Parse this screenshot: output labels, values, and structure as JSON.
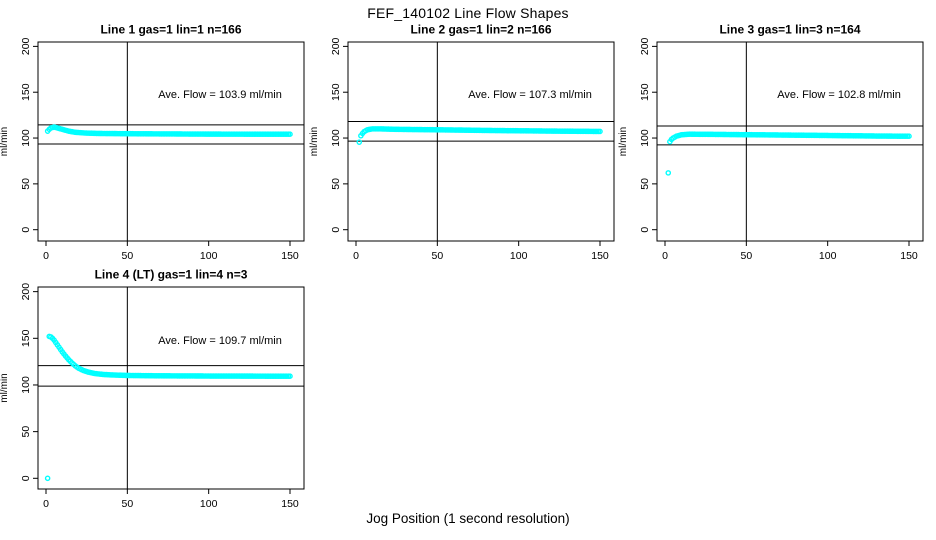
{
  "page": {
    "title": "FEF_140102  Line Flow Shapes",
    "xlabel": "Jog Position (1 second resolution)",
    "ylabel": "ml/min",
    "point_color": "#00FFFF",
    "line_color": "#000000",
    "background_color": "#ffffff"
  },
  "chart_data": [
    {
      "type": "scatter",
      "title": "Line 1 gas=1 lin=1 n=166",
      "n": 166,
      "ave_flow": 103.9,
      "annotation": "Ave. Flow =  103.9  ml/min",
      "xlabel": "Jog Position (1 second resolution)",
      "ylabel": "ml/min",
      "xticks": [
        0,
        50,
        100,
        150
      ],
      "yticks": [
        0,
        50,
        100,
        150,
        200
      ],
      "xlim": [
        -5,
        158
      ],
      "ylim": [
        -13,
        205
      ],
      "vline_x": 50,
      "hlines": [
        114.3,
        93.5
      ],
      "outliers": [],
      "curve": [
        [
          1,
          107.5
        ],
        [
          2,
          109.5
        ],
        [
          3,
          111
        ],
        [
          5,
          112
        ],
        [
          7,
          111
        ],
        [
          10,
          109.5
        ],
        [
          14,
          107.5
        ],
        [
          18,
          106.3
        ],
        [
          24,
          105.5
        ],
        [
          32,
          105
        ],
        [
          60,
          104.6
        ],
        [
          100,
          104.3
        ],
        [
          150,
          104.2
        ]
      ]
    },
    {
      "type": "scatter",
      "title": "Line 2 gas=1 lin=2 n=166",
      "n": 166,
      "ave_flow": 107.3,
      "annotation": "Ave. Flow =  107.3  ml/min",
      "xlabel": "Jog Position (1 second resolution)",
      "ylabel": "ml/min",
      "xticks": [
        0,
        50,
        100,
        150
      ],
      "yticks": [
        0,
        50,
        100,
        150,
        200
      ],
      "xlim": [
        -5,
        158
      ],
      "ylim": [
        -13,
        205
      ],
      "vline_x": 50,
      "hlines": [
        118.0,
        96.6
      ],
      "outliers": [
        [
          2,
          95.5
        ]
      ],
      "curve": [
        [
          3,
          102.5
        ],
        [
          4,
          105
        ],
        [
          5,
          107
        ],
        [
          7,
          109
        ],
        [
          10,
          110
        ],
        [
          15,
          110
        ],
        [
          25,
          109.5
        ],
        [
          50,
          109
        ],
        [
          80,
          108.3
        ],
        [
          120,
          107.6
        ],
        [
          150,
          107.2
        ]
      ]
    },
    {
      "type": "scatter",
      "title": "Line 3 gas=1 lin=3 n=164",
      "n": 164,
      "ave_flow": 102.8,
      "annotation": "Ave. Flow =  102.8  ml/min",
      "xlabel": "Jog Position (1 second resolution)",
      "ylabel": "ml/min",
      "xticks": [
        0,
        50,
        100,
        150
      ],
      "yticks": [
        0,
        50,
        100,
        150,
        200
      ],
      "xlim": [
        -5,
        158
      ],
      "ylim": [
        -13,
        205
      ],
      "vline_x": 50,
      "hlines": [
        113.1,
        92.5
      ],
      "outliers": [
        [
          2,
          62
        ],
        [
          3,
          96
        ]
      ],
      "curve": [
        [
          4,
          98.5
        ],
        [
          5,
          100
        ],
        [
          7,
          102
        ],
        [
          10,
          103.5
        ],
        [
          15,
          104.2
        ],
        [
          30,
          104
        ],
        [
          60,
          103.5
        ],
        [
          100,
          102.8
        ],
        [
          130,
          102.2
        ],
        [
          150,
          102
        ]
      ]
    },
    {
      "type": "scatter",
      "title": "Line 4 (LT) gas=1 lin=4 n=3",
      "n": 3,
      "ave_flow": 109.7,
      "annotation": "Ave. Flow =  109.7  ml/min",
      "xlabel": "Jog Position (1 second resolution)",
      "ylabel": "ml/min",
      "xticks": [
        0,
        50,
        100,
        150
      ],
      "yticks": [
        0,
        50,
        100,
        150,
        200
      ],
      "xlim": [
        -5,
        158
      ],
      "ylim": [
        -13,
        205
      ],
      "vline_x": 50,
      "hlines": [
        120.7,
        98.7
      ],
      "outliers": [
        [
          1,
          0
        ]
      ],
      "curve": [
        [
          2,
          152
        ],
        [
          3,
          151.5
        ],
        [
          4,
          150
        ],
        [
          5,
          148
        ],
        [
          6,
          145.5
        ],
        [
          7,
          143
        ],
        [
          8,
          140.5
        ],
        [
          9,
          138
        ],
        [
          10,
          135.5
        ],
        [
          12,
          131
        ],
        [
          14,
          127
        ],
        [
          16,
          123.5
        ],
        [
          18,
          120.5
        ],
        [
          20,
          118
        ],
        [
          23,
          115.5
        ],
        [
          26,
          113.8
        ],
        [
          30,
          112.3
        ],
        [
          35,
          111.3
        ],
        [
          40,
          110.8
        ],
        [
          50,
          110.2
        ],
        [
          70,
          109.8
        ],
        [
          100,
          109.6
        ],
        [
          150,
          109.4
        ]
      ]
    }
  ]
}
